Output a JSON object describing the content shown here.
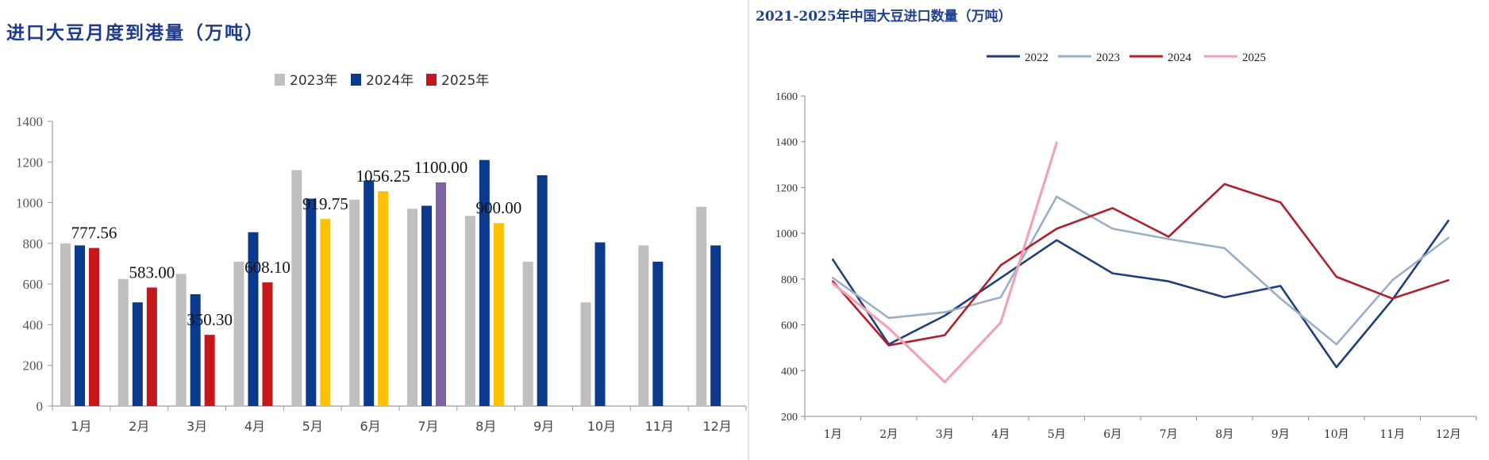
{
  "chart_data": [
    {
      "type": "bar",
      "title": "进口大豆月度到港量（万吨）",
      "categories": [
        "1月",
        "2月",
        "3月",
        "4月",
        "5月",
        "6月",
        "7月",
        "8月",
        "9月",
        "10月",
        "11月",
        "12月"
      ],
      "series": [
        {
          "name": "2023年",
          "color": "#bfbfbf",
          "values": [
            800,
            625,
            650,
            710,
            1160,
            1015,
            970,
            935,
            710,
            510,
            790,
            980
          ]
        },
        {
          "name": "2024年",
          "color": "#0b3a8c",
          "values": [
            790,
            510,
            550,
            855,
            1020,
            1110,
            985,
            1210,
            1135,
            805,
            710,
            790
          ]
        },
        {
          "name": "2025年",
          "color": "#c8161d",
          "values": [
            777.56,
            583.0,
            350.3,
            608.1,
            919.75,
            1056.25,
            1100.0,
            900.0,
            null,
            null,
            null,
            null
          ],
          "point_colors": [
            "#c8161d",
            "#c8161d",
            "#c8161d",
            "#c8161d",
            "#ffc000",
            "#ffc000",
            "#8064a2",
            "#ffc000",
            null,
            null,
            null,
            null
          ],
          "labels": [
            "777.56",
            "583.00",
            "350.30",
            "608.10",
            "919.75",
            "1056.25",
            "1100.00",
            "900.00",
            null,
            null,
            null,
            null
          ]
        }
      ],
      "yticks": [
        "0",
        "200",
        "400",
        "600",
        "800",
        "1000",
        "1200",
        "1400"
      ],
      "ylim": [
        0,
        1400
      ],
      "legend": "top-center",
      "grid": false
    },
    {
      "type": "line",
      "title": "2021-2025年中国大豆进口数量（万吨）",
      "categories": [
        "1月",
        "2月",
        "3月",
        "4月",
        "5月",
        "6月",
        "7月",
        "8月",
        "9月",
        "10月",
        "11月",
        "12月"
      ],
      "series": [
        {
          "name": "2022",
          "color": "#1f3f7a",
          "values": [
            885,
            515,
            640,
            805,
            970,
            825,
            790,
            720,
            770,
            415,
            710,
            1055
          ]
        },
        {
          "name": "2023",
          "color": "#9aaec8",
          "values": [
            805,
            630,
            655,
            720,
            1160,
            1020,
            975,
            935,
            715,
            515,
            795,
            980
          ]
        },
        {
          "name": "2024",
          "color": "#b01f2a",
          "values": [
            790,
            510,
            555,
            860,
            1020,
            1110,
            985,
            1215,
            1135,
            810,
            715,
            795
          ]
        },
        {
          "name": "2025",
          "color": "#f2a2b1",
          "values": [
            780,
            585,
            350,
            610,
            1395,
            null,
            null,
            null,
            null,
            null,
            null,
            null
          ]
        }
      ],
      "yticks": [
        "200",
        "400",
        "600",
        "800",
        "1000",
        "1200",
        "1400",
        "1600"
      ],
      "ylim": [
        200,
        1600
      ],
      "legend": "top-center",
      "grid": false
    }
  ]
}
